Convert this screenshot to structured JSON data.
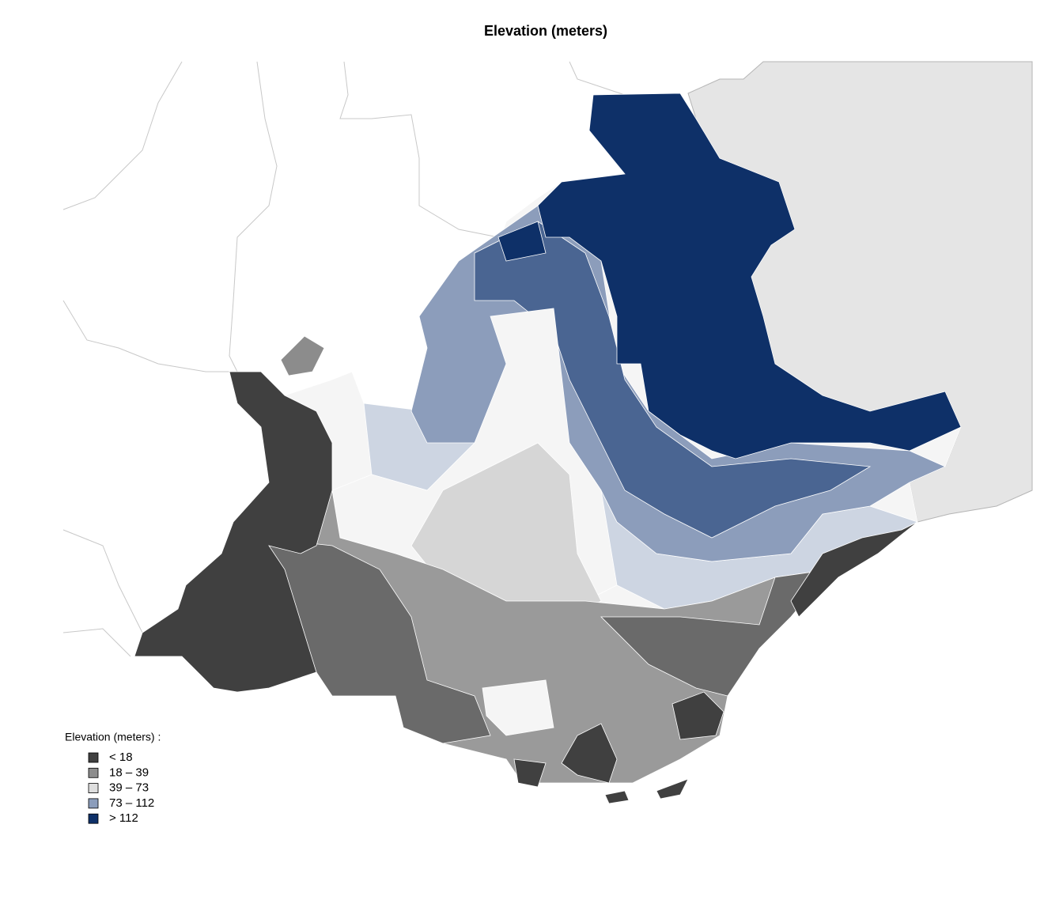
{
  "title": "Elevation (meters)",
  "legend": {
    "title": "Elevation (meters)  :",
    "items": [
      {
        "label": "< 18",
        "color": "#404040"
      },
      {
        "label": "18 – 39",
        "color": "#8c8c8c"
      },
      {
        "label": "39 – 73",
        "color": "#dedede"
      },
      {
        "label": "73 – 112",
        "color": "#8c9dbb"
      },
      {
        "label": "> 112",
        "color": "#0e3068"
      }
    ]
  }
}
